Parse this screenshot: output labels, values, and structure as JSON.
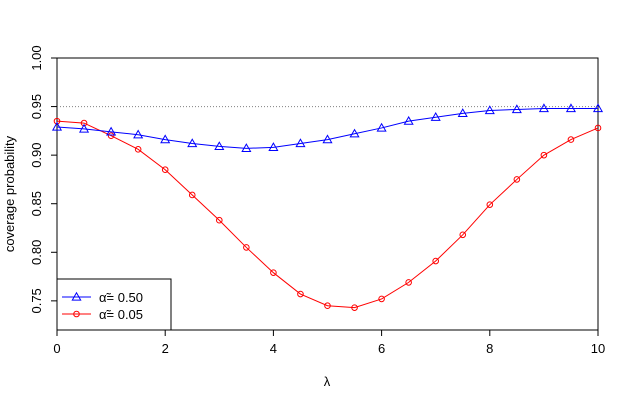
{
  "chart_data": {
    "type": "line",
    "xlabel": "λ",
    "ylabel": "coverage probability",
    "xlim": [
      0,
      10
    ],
    "ylim": [
      0.72,
      1.0
    ],
    "x_ticks": [
      "0",
      "2",
      "4",
      "6",
      "8",
      "10"
    ],
    "y_ticks": [
      "0.75",
      "0.80",
      "0.85",
      "0.90",
      "0.95",
      "1.00"
    ],
    "reference_line": 0.95,
    "grid": false,
    "legend_position": "bottom-left",
    "x": [
      0,
      0.5,
      1,
      1.5,
      2,
      2.5,
      3,
      3.5,
      4,
      4.5,
      5,
      5.5,
      6,
      6.5,
      7,
      7.5,
      8,
      8.5,
      9,
      9.5,
      10
    ],
    "series": [
      {
        "name": "α̃= 0.50",
        "color": "#0000ff",
        "marker": "triangle",
        "values": [
          0.929,
          0.927,
          0.924,
          0.921,
          0.916,
          0.912,
          0.909,
          0.907,
          0.908,
          0.912,
          0.916,
          0.922,
          0.928,
          0.935,
          0.939,
          0.943,
          0.946,
          0.947,
          0.948,
          0.948,
          0.948
        ]
      },
      {
        "name": "α̃= 0.05",
        "color": "#ff0000",
        "marker": "circle",
        "values": [
          0.935,
          0.933,
          0.92,
          0.906,
          0.885,
          0.859,
          0.833,
          0.805,
          0.779,
          0.757,
          0.745,
          0.743,
          0.752,
          0.769,
          0.791,
          0.818,
          0.849,
          0.875,
          0.9,
          0.916,
          0.928
        ]
      }
    ]
  }
}
